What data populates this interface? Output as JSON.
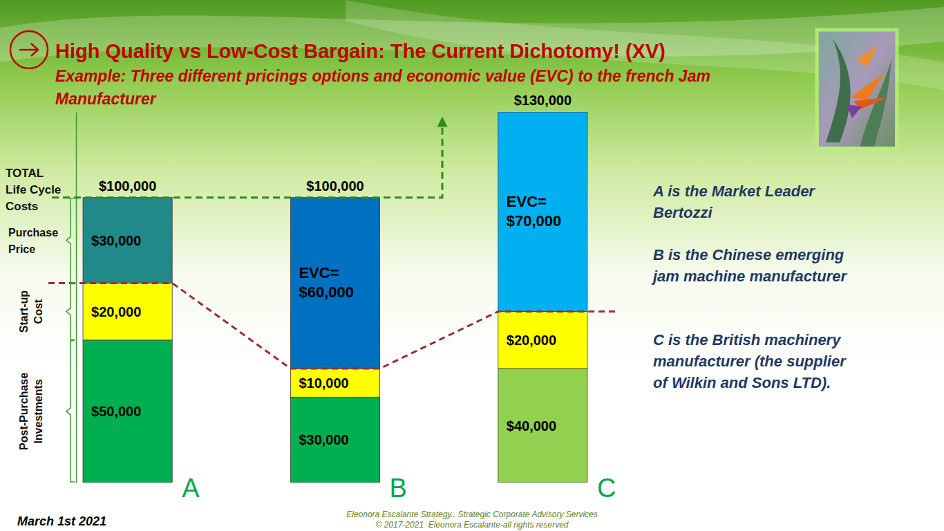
{
  "chart_data": {
    "type": "bar",
    "title": "High Quality vs Low-Cost Bargain: The Current Dichotomy! (XV)",
    "subtitle": "Example: Three different pricings options and economic value (EVC) to the french Jam Manufacturer",
    "stacked": true,
    "data_labels": true,
    "tick_labels": "x",
    "categories": [
      "A",
      "B",
      "C"
    ],
    "ylim": [
      0,
      130000
    ],
    "series": [
      {
        "name": "Post-Purchase Investments",
        "colors": [
          "#00b050",
          "#00b050",
          "#92d050"
        ],
        "values": [
          50000,
          30000,
          40000
        ],
        "value_labels": [
          "$50,000",
          "$30,000",
          "$40,000"
        ]
      },
      {
        "name": "Start-up Cost",
        "color": "#ffff00",
        "values": [
          20000,
          10000,
          20000
        ],
        "value_labels": [
          "$20,000",
          "$10,000",
          "$20,000"
        ]
      },
      {
        "name": "Purchase Price",
        "color": "#21898a",
        "values": [
          30000,
          null,
          null
        ],
        "value_labels": [
          "$30,000",
          null,
          null
        ]
      },
      {
        "colors": [
          null,
          "#0070c0",
          "#00b0f0"
        ],
        "values": [
          null,
          60000,
          70000
        ],
        "value_labels": [
          null,
          "EVC=\n$60,000",
          "EVC=\n$70,000"
        ]
      }
    ],
    "totals": {
      "label": "TOTAL\nLife Cycle\nCosts",
      "values": [
        100000,
        100000,
        130000
      ],
      "value_labels": [
        "$100,000",
        "$100,000",
        "$130,000"
      ]
    },
    "annotations": [
      "A is the Market Leader Bertozzi",
      "B is the Chinese emerging jam machine manufacturer",
      "C is the British machinery manufacturer (the supplier of Wilkin and Sons LTD)."
    ]
  },
  "slide": {
    "date": "March 1st 2021",
    "footer": [
      "Eleonora Escalante Strategy.. Strategic Corporate Advisory Services",
      "© 2017-2021  Eleonora Escalante-all rights reserved"
    ]
  }
}
